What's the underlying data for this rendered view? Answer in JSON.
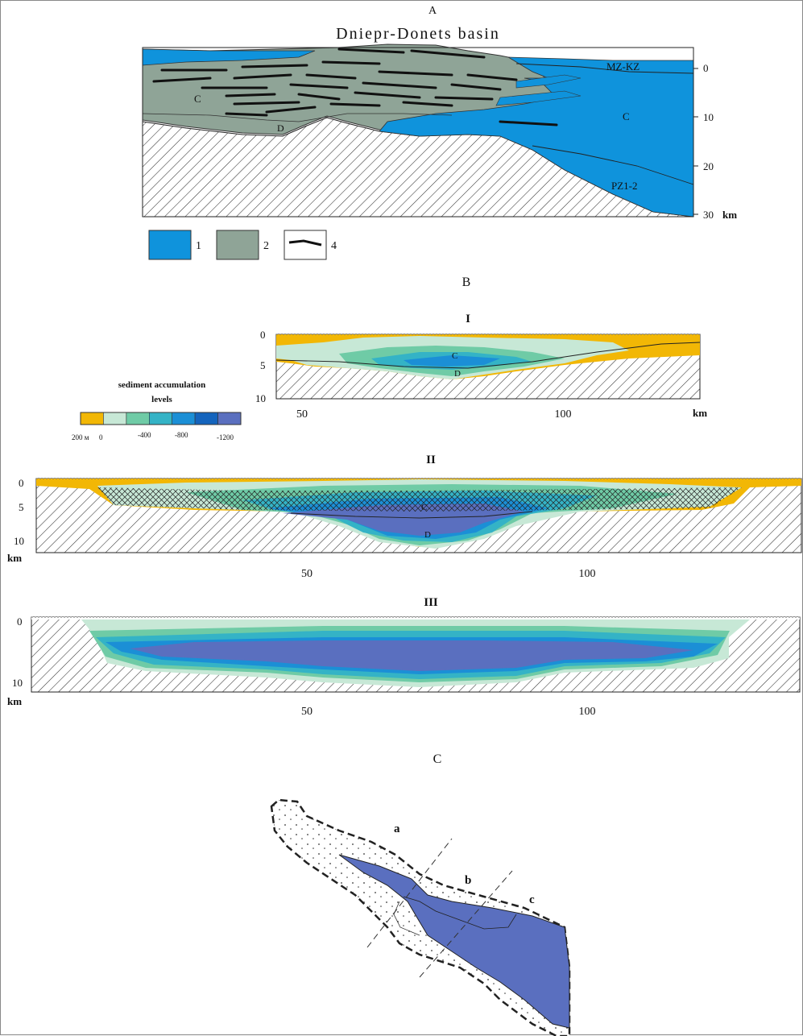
{
  "panel_a": {
    "panel_label": "A",
    "title": "Dniepr-Donets basin",
    "labels": {
      "c_left": "C",
      "d": "D",
      "mz_kz": "MZ-KZ",
      "c_right": "C",
      "pz": "PZ1-2"
    },
    "depth_ticks": [
      "0",
      "10",
      "20",
      "30"
    ],
    "depth_unit": "km",
    "legend": [
      {
        "key": "1",
        "color": "#0f93dc"
      },
      {
        "key": "2",
        "color": "#8fa497"
      },
      {
        "key": "4",
        "color": "#ffffff"
      }
    ]
  },
  "panel_b": {
    "panel_label": "B",
    "accumulation_legend": {
      "title_line1": "sediment accumulation",
      "title_line2": "levels",
      "colors": [
        "#f2b705",
        "#c7e8d6",
        "#6fcba6",
        "#34b3c6",
        "#1b8fd6",
        "#1464bd",
        "#5a6fbf"
      ],
      "tick_labels": [
        "200 м",
        "0",
        "-400",
        "-800",
        "-1200"
      ]
    },
    "sections": [
      {
        "label": "I",
        "depth_ticks": [
          "0",
          "5",
          "10"
        ],
        "x_ticks": [
          "50",
          "100"
        ],
        "unit": "km",
        "c": "C",
        "d": "D"
      },
      {
        "label": "II",
        "depth_ticks": [
          "0",
          "5",
          "10"
        ],
        "x_ticks": [
          "50",
          "100"
        ],
        "unit": "km",
        "c": "C",
        "d": "D"
      },
      {
        "label": "III",
        "depth_ticks": [
          "0",
          "10"
        ],
        "x_ticks": [
          "50",
          "100"
        ],
        "unit": "km"
      }
    ]
  },
  "panel_c": {
    "panel_label": "C",
    "zones": [
      "a",
      "b",
      "c"
    ]
  }
}
